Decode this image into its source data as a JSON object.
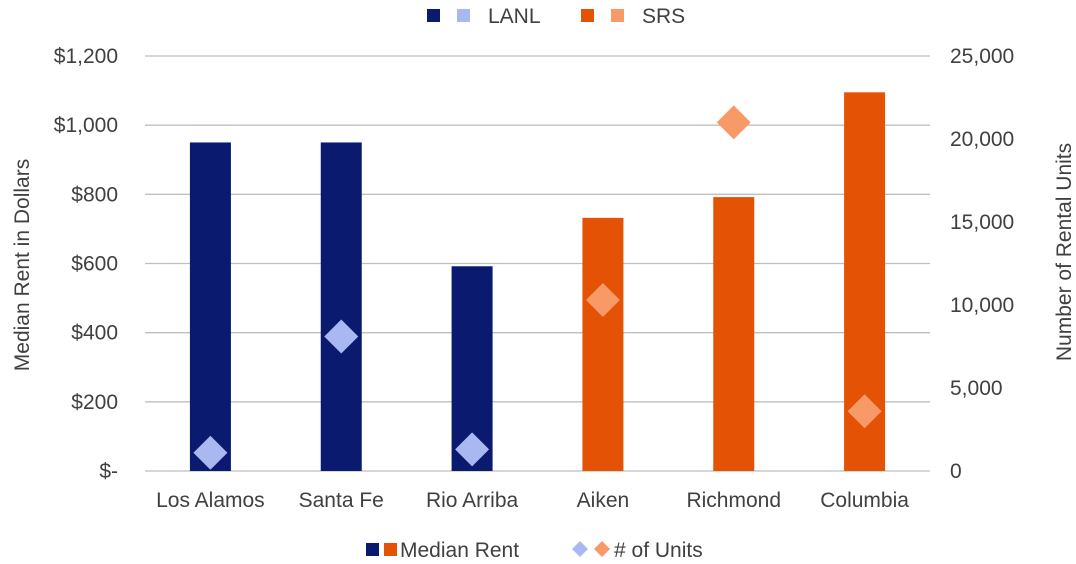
{
  "chart_data": {
    "type": "bar",
    "categories": [
      "Los Alamos",
      "Santa Fe",
      "Rio Arriba",
      "Aiken",
      "Richmond",
      "Columbia"
    ],
    "groups": [
      "LANL",
      "LANL",
      "LANL",
      "SRS",
      "SRS",
      "SRS"
    ],
    "series": [
      {
        "name": "Median Rent",
        "axis": "left",
        "mark": "bar",
        "values": [
          950,
          950,
          592,
          732,
          792,
          1095
        ]
      },
      {
        "name": "# of Units",
        "axis": "right",
        "mark": "diamond",
        "values": [
          1100,
          8100,
          1300,
          10300,
          21000,
          3600
        ]
      }
    ],
    "ylabel": "Median Rent in Dollars",
    "y2label": "Number of Rental Units",
    "ylim": [
      0,
      1200
    ],
    "y2lim": [
      0,
      25000
    ],
    "yticks": [
      "$-",
      "$200",
      "$400",
      "$600",
      "$800",
      "$1,000",
      "$1,200"
    ],
    "y2ticks": [
      "0",
      "5,000",
      "10,000",
      "15,000",
      "20,000",
      "25,000"
    ],
    "grid": true,
    "legend_top": {
      "position": "top",
      "entries": [
        {
          "label": "LANL",
          "colors": [
            "#0a1a6e",
            "#aab8f2"
          ]
        },
        {
          "label": "SRS",
          "colors": [
            "#e35205",
            "#f89a68"
          ]
        }
      ]
    },
    "legend_bottom": {
      "position": "bottom",
      "entries": [
        {
          "label": "Median Rent",
          "colors": [
            "#0a1a6e",
            "#e35205"
          ],
          "shape": "square"
        },
        {
          "label": "# of Units",
          "colors": [
            "#aab8f2",
            "#f89a68"
          ],
          "shape": "diamond"
        }
      ]
    },
    "colors": {
      "LANL_bar": "#0a1a6e",
      "LANL_marker": "#aab8f2",
      "SRS_bar": "#e35205",
      "SRS_marker": "#f89a68"
    }
  }
}
